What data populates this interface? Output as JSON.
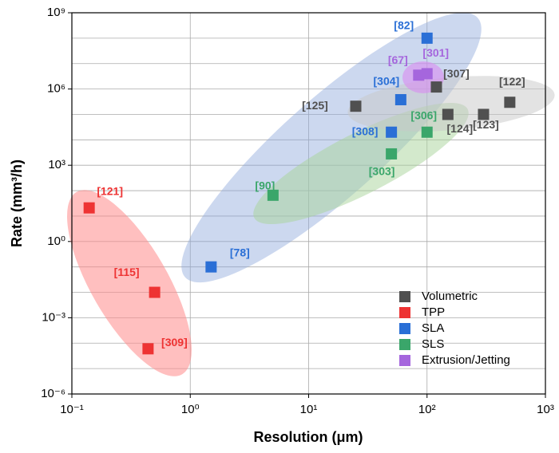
{
  "chart_data": {
    "type": "scatter",
    "x_label": "Resolution (μm)",
    "y_label": "Rate (mm³/h)",
    "xlog": true,
    "ylog": true,
    "xlim": [
      0.1,
      1000
    ],
    "ylim": [
      1e-06,
      1000000000
    ],
    "xticks": [
      {
        "value": 0.1,
        "label": "10⁻¹"
      },
      {
        "value": 1,
        "label": "10⁰"
      },
      {
        "value": 10,
        "label": "10¹"
      },
      {
        "value": 100,
        "label": "10²"
      },
      {
        "value": 1000,
        "label": "10³"
      }
    ],
    "yticks": [
      {
        "value": 1e-06,
        "label": "10⁻⁶"
      },
      {
        "value": 0.001,
        "label": "10⁻³"
      },
      {
        "value": 1,
        "label": "10⁰"
      },
      {
        "value": 1000,
        "label": "10³"
      },
      {
        "value": 1000000,
        "label": "10⁶"
      },
      {
        "value": 1000000000,
        "label": "10⁹"
      }
    ],
    "y_minor_grid": [
      1e-05,
      0.0001,
      0.01,
      0.1,
      10,
      100,
      10000,
      100000,
      10000000,
      100000000
    ],
    "grid": true,
    "legend": "lower right",
    "series": [
      {
        "name": "Volumetric",
        "color": "#505050",
        "x": [
          25,
          500,
          150,
          300,
          120
        ],
        "values": [
          210000,
          300000,
          100000,
          100000,
          1200000
        ],
        "labels": [
          "[125]",
          "[122]",
          "[124]",
          "[123]",
          "[307]"
        ]
      },
      {
        "name": "TPP",
        "color": "#ee3333",
        "x": [
          0.14,
          0.5,
          0.44
        ],
        "values": [
          21,
          0.01,
          6e-05
        ],
        "labels": [
          "[121]",
          "[115]",
          "[309]"
        ]
      },
      {
        "name": "SLA",
        "color": "#2a6fd6",
        "x": [
          100,
          60,
          50,
          1.5
        ],
        "values": [
          100000000,
          380000,
          20000,
          0.1
        ],
        "labels": [
          "[82]",
          "[304]",
          "[308]",
          "[78]"
        ]
      },
      {
        "name": "SLS",
        "color": "#3aa66a",
        "x": [
          5,
          50,
          100
        ],
        "values": [
          66,
          2800,
          20000
        ],
        "labels": [
          "[90]",
          "[303]",
          "[306]"
        ]
      },
      {
        "name": "Extrusion/Jetting",
        "color": "#a566dd",
        "x": [
          85,
          100
        ],
        "values": [
          3500000,
          4000000
        ],
        "labels": [
          "[67]",
          "[301]"
        ]
      }
    ]
  }
}
